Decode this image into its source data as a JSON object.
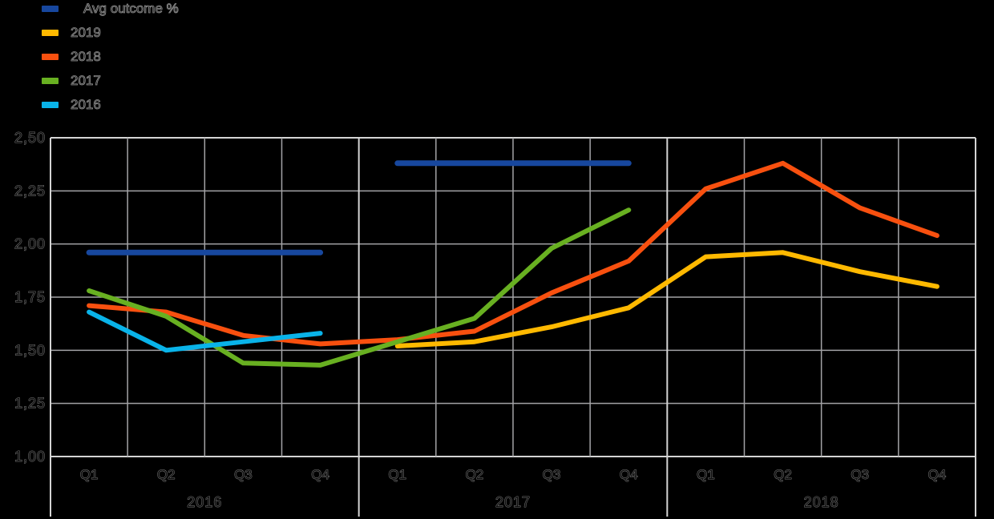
{
  "legend": {
    "items": [
      {
        "label": "Avg outcome %",
        "color": "#17479E"
      },
      {
        "label": "2019",
        "color": "#FFB900"
      },
      {
        "label": "2018",
        "color": "#F8500F"
      },
      {
        "label": "2017",
        "color": "#68B021"
      },
      {
        "label": "2016",
        "color": "#09B3E9"
      }
    ]
  },
  "chart_data": {
    "type": "line",
    "title": "",
    "xlabel": "",
    "ylabel": "",
    "grid": "on",
    "legend_position": "top-left",
    "ylim": [
      1.0,
      2.5
    ],
    "ytick_step": 0.25,
    "ytick_labels": [
      "2,50",
      "2,25",
      "2,00",
      "1,75",
      "1,50",
      "1,25",
      "1,00"
    ],
    "x_groups": [
      {
        "year": "2016",
        "quarters": [
          "Q1",
          "Q2",
          "Q3",
          "Q4"
        ]
      },
      {
        "year": "2017",
        "quarters": [
          "Q1",
          "Q2",
          "Q3",
          "Q4"
        ]
      },
      {
        "year": "2018",
        "quarters": [
          "Q1",
          "Q2",
          "Q3",
          "Q4"
        ]
      }
    ],
    "series": [
      {
        "name": "Avg outcome %",
        "color": "#17479E",
        "width": 7,
        "lines": [
          [
            [
              0,
              1.96
            ],
            [
              3,
              1.96
            ]
          ],
          [
            [
              4,
              2.38
            ],
            [
              7,
              2.38
            ]
          ]
        ]
      },
      {
        "name": "2019",
        "color": "#FFB900",
        "width": 6,
        "lines": [
          [
            [
              4,
              1.52
            ],
            [
              5,
              1.54
            ],
            [
              6,
              1.61
            ],
            [
              7,
              1.7
            ],
            [
              8,
              1.94
            ],
            [
              9,
              1.96
            ],
            [
              10,
              1.87
            ],
            [
              11,
              1.8
            ]
          ]
        ]
      },
      {
        "name": "2018",
        "color": "#F8500F",
        "width": 6,
        "lines": [
          [
            [
              0,
              1.71
            ],
            [
              1,
              1.68
            ],
            [
              2,
              1.57
            ],
            [
              3,
              1.53
            ],
            [
              4,
              1.55
            ],
            [
              5,
              1.59
            ],
            [
              6,
              1.77
            ],
            [
              7,
              1.92
            ],
            [
              8,
              2.26
            ],
            [
              9,
              2.38
            ],
            [
              10,
              2.17
            ],
            [
              11,
              2.04
            ]
          ]
        ]
      },
      {
        "name": "2017",
        "color": "#68B021",
        "width": 6,
        "lines": [
          [
            [
              0,
              1.78
            ],
            [
              1,
              1.66
            ],
            [
              2,
              1.44
            ],
            [
              3,
              1.43
            ],
            [
              4,
              1.54
            ],
            [
              5,
              1.65
            ],
            [
              6,
              1.98
            ],
            [
              7,
              2.16
            ]
          ]
        ]
      },
      {
        "name": "2016",
        "color": "#09B3E9",
        "width": 6,
        "lines": [
          [
            [
              0,
              1.68
            ],
            [
              1,
              1.5
            ],
            [
              2,
              1.54
            ],
            [
              3,
              1.58
            ]
          ]
        ]
      }
    ]
  },
  "colors": {
    "background": "#000000",
    "gridline": "#A3A3A6",
    "border": "#D4D4D4",
    "text_halo": "#8F8F8F"
  }
}
